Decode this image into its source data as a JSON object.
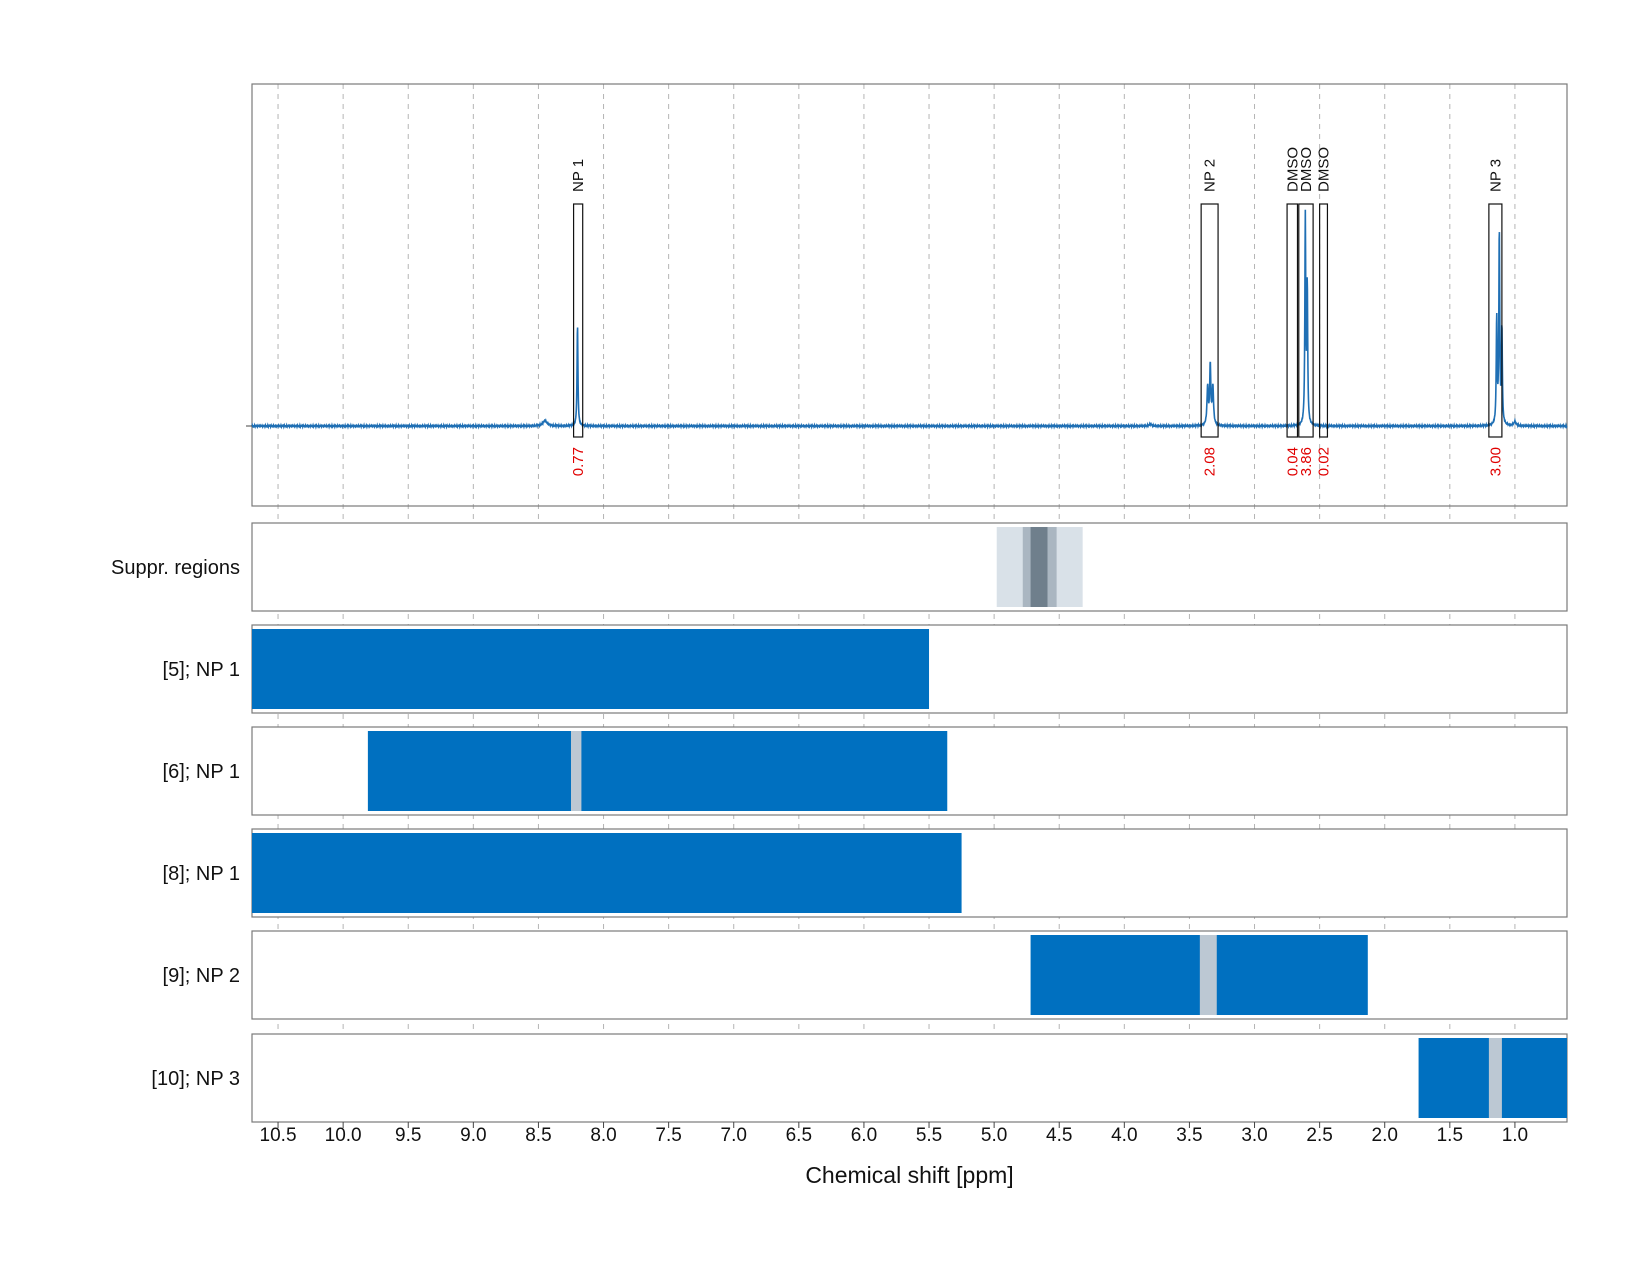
{
  "chart_data": {
    "type": "line",
    "xlabel": "Chemical shift [ppm]",
    "xlim": [
      10.7,
      0.6
    ],
    "x_reversed": true,
    "x_ticks": [
      "10.5",
      "10.0",
      "9.5",
      "9.0",
      "8.5",
      "8.0",
      "7.5",
      "7.0",
      "6.5",
      "6.0",
      "5.5",
      "5.0",
      "4.5",
      "4.0",
      "3.5",
      "3.0",
      "2.5",
      "2.0",
      "1.5",
      "1.0"
    ],
    "grid": "vertical dashed",
    "colors": {
      "spectrum": "#1f6fb4",
      "region": "#0070c0",
      "excluded": "#bcc8d3",
      "suppr_light": "#d9e1e8",
      "suppr_mid": "#aab6c1",
      "suppr_dark": "#6f7f8c",
      "integral": "#e00000"
    },
    "spectrum": {
      "baseline": 0.0,
      "peaks": [
        {
          "x": 8.45,
          "height": 0.025,
          "width": 0.02
        },
        {
          "x": 8.2,
          "height": 0.48,
          "width": 0.004
        },
        {
          "x": 3.36,
          "height": 0.18,
          "width": 0.006
        },
        {
          "x": 3.34,
          "height": 0.28,
          "width": 0.005
        },
        {
          "x": 3.32,
          "height": 0.18,
          "width": 0.006
        },
        {
          "x": 2.61,
          "height": 0.97,
          "width": 0.004
        },
        {
          "x": 2.595,
          "height": 0.65,
          "width": 0.004
        },
        {
          "x": 1.14,
          "height": 0.5,
          "width": 0.004
        },
        {
          "x": 1.12,
          "height": 0.91,
          "width": 0.004
        },
        {
          "x": 1.1,
          "height": 0.45,
          "width": 0.004
        },
        {
          "x": 1.0,
          "height": 0.02,
          "width": 0.01
        },
        {
          "x": 3.8,
          "height": 0.01,
          "width": 0.01
        }
      ]
    },
    "peak_annotations": [
      {
        "label": "NP 1",
        "from": 8.23,
        "to": 8.16,
        "integral": "0.77"
      },
      {
        "label": "NP 2",
        "from": 3.41,
        "to": 3.28,
        "integral": "2.08"
      },
      {
        "label": "DMSO",
        "from": 2.75,
        "to": 2.67,
        "integral": "0.04"
      },
      {
        "label": "DMSO",
        "from": 2.66,
        "to": 2.55,
        "integral": "3.86"
      },
      {
        "label": "DMSO",
        "from": 2.5,
        "to": 2.44,
        "integral": "0.02"
      },
      {
        "label": "NP 3",
        "from": 1.2,
        "to": 1.1,
        "integral": "3.00"
      }
    ],
    "tracks": [
      {
        "label": "Suppr. regions",
        "type": "suppression",
        "bands": [
          {
            "from": 4.98,
            "to": 4.32,
            "level": "light"
          },
          {
            "from": 4.78,
            "to": 4.52,
            "level": "mid"
          },
          {
            "from": 4.72,
            "to": 4.59,
            "level": "dark"
          }
        ]
      },
      {
        "label": "[5]; NP 1",
        "type": "region",
        "from": 10.7,
        "to": 5.5,
        "excluded": []
      },
      {
        "label": "[6]; NP 1",
        "type": "region",
        "from": 9.81,
        "to": 5.36,
        "excluded": [
          [
            8.25,
            8.17
          ]
        ]
      },
      {
        "label": "[8]; NP 1",
        "type": "region",
        "from": 10.7,
        "to": 5.25,
        "excluded": []
      },
      {
        "label": "[9]; NP 2",
        "type": "region",
        "from": 4.72,
        "to": 2.13,
        "excluded": [
          [
            3.42,
            3.29
          ]
        ]
      },
      {
        "label": "[10]; NP 3",
        "type": "region",
        "from": 1.74,
        "to": 0.6,
        "excluded": [
          [
            1.2,
            1.1
          ]
        ]
      }
    ]
  }
}
